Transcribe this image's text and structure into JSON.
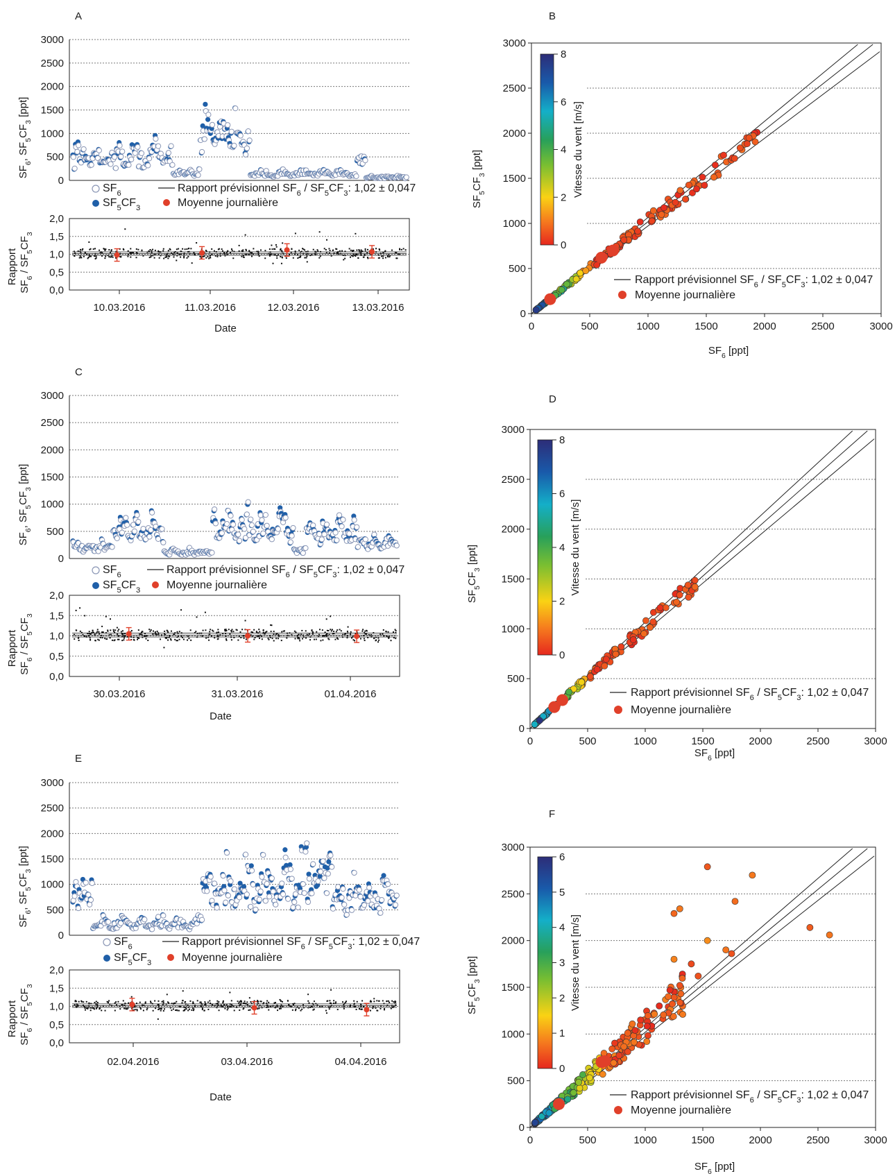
{
  "text": {
    "sf6": "SF",
    "sf5cf3": "SF",
    "predicted": "Rapport prévisionnel",
    "predicted_value": ": 1,02 ± 0,047",
    "daily_mean": "Moyenne journalière",
    "date": "Date",
    "x_scatter": "SF",
    "x_unit": " [ppt]",
    "y_scatter_unit": " [ppt]",
    "y_time_unit": " [ppt]",
    "ratio_title": "Rapport",
    "wind": "Vitesse du vent [m/s]"
  },
  "chart_data": [
    {
      "id": "A",
      "type": "scatter",
      "panel_label": "A",
      "x_ticks": [
        "10.03.2016",
        "11.03.2016",
        "12.03.2016",
        "13.03.2016"
      ],
      "xlabel": "Date",
      "ylabel": "SF6, SF5CF3 [ppt]",
      "ylim": [
        0,
        3000
      ],
      "yticks": [
        0,
        500,
        1000,
        1500,
        2000,
        2500,
        3000
      ],
      "ratio_ylim": [
        0,
        2
      ],
      "ratio_yticks": [
        "0,0",
        "0,5",
        "1,0",
        "1,5",
        "2,0"
      ],
      "ratio_ylabel": "Rapport SF6 / SF5CF3",
      "segments": [
        {
          "from": 0.0,
          "to": 0.3,
          "base": 400,
          "amp": 700
        },
        {
          "from": 0.3,
          "to": 0.38,
          "base": 150,
          "amp": 150
        },
        {
          "from": 0.38,
          "to": 0.53,
          "base": 900,
          "amp": 900
        },
        {
          "from": 0.53,
          "to": 0.85,
          "base": 120,
          "amp": 150
        },
        {
          "from": 0.85,
          "to": 0.88,
          "base": 500,
          "amp": 300
        },
        {
          "from": 0.88,
          "to": 1.0,
          "base": 60,
          "amp": 60
        }
      ],
      "daily_means": [
        {
          "x": 0.14,
          "y": 0.98
        },
        {
          "x": 0.39,
          "y": 1.04
        },
        {
          "x": 0.64,
          "y": 1.12
        },
        {
          "x": 0.89,
          "y": 1.07
        }
      ],
      "legend": [
        "SF6",
        "SF5CF3",
        "Rapport prévisionnel SF6 / SF5CF3: 1,02 ± 0,047",
        "Moyenne journalière"
      ]
    },
    {
      "id": "B",
      "type": "scatter",
      "panel_label": "B",
      "xlabel": "SF6 [ppt]",
      "ylabel": "SF5CF3 [ppt]",
      "xlim": [
        0,
        3000
      ],
      "ylim": [
        0,
        3000
      ],
      "xticks": [
        0,
        500,
        1000,
        1500,
        2000,
        2500,
        3000
      ],
      "yticks": [
        0,
        500,
        1000,
        1500,
        2000,
        2500,
        3000
      ],
      "colorbar": {
        "label": "Vitesse du vent [m/s]",
        "min": 0,
        "max": 8,
        "ticks": [
          0,
          2,
          4,
          6,
          8
        ]
      },
      "ratio_lines": [
        0.973,
        1.02,
        1.067
      ],
      "max_x": 1900,
      "points": 230,
      "daily_means": [
        {
          "x": 160,
          "y": 160
        },
        {
          "x": 600,
          "y": 620
        },
        {
          "x": 700,
          "y": 700
        }
      ],
      "legend": [
        "Rapport prévisionnel SF6 / SF5CF3: 1,02 ± 0,047",
        "Moyenne journalière"
      ]
    },
    {
      "id": "C",
      "type": "scatter",
      "panel_label": "C",
      "x_ticks": [
        "30.03.2016",
        "31.03.2016",
        "01.04.2016"
      ],
      "xlabel": "Date",
      "ylabel": "SF6, SF5CF3 [ppt]",
      "ylim": [
        0,
        3000
      ],
      "yticks": [
        0,
        500,
        1000,
        1500,
        2000,
        2500,
        3000
      ],
      "ratio_ylim": [
        0,
        2
      ],
      "ratio_yticks": [
        "0,0",
        "0,5",
        "1,0",
        "1,5",
        "2,0"
      ],
      "ratio_ylabel": "Rapport SF6 / SF5CF3",
      "segments": [
        {
          "from": 0.0,
          "to": 0.12,
          "base": 200,
          "amp": 200
        },
        {
          "from": 0.12,
          "to": 0.28,
          "base": 450,
          "amp": 650
        },
        {
          "from": 0.28,
          "to": 0.43,
          "base": 100,
          "amp": 120
        },
        {
          "from": 0.43,
          "to": 0.68,
          "base": 450,
          "amp": 800
        },
        {
          "from": 0.68,
          "to": 0.72,
          "base": 150,
          "amp": 100
        },
        {
          "from": 0.72,
          "to": 0.88,
          "base": 400,
          "amp": 550
        },
        {
          "from": 0.88,
          "to": 1.0,
          "base": 250,
          "amp": 250
        }
      ],
      "daily_means": [
        {
          "x": 0.18,
          "y": 1.05
        },
        {
          "x": 0.54,
          "y": 1.0
        },
        {
          "x": 0.87,
          "y": 0.99
        }
      ],
      "legend": [
        "SF6",
        "SF5CF3",
        "Rapport prévisionnel SF6 / SF5CF3: 1,02 ± 0,047",
        "Moyenne journalière"
      ]
    },
    {
      "id": "D",
      "type": "scatter",
      "panel_label": "D",
      "xlabel": "SF6 [ppt]",
      "ylabel": "SF5CF3 [ppt]",
      "xlim": [
        0,
        3000
      ],
      "ylim": [
        0,
        3000
      ],
      "xticks": [
        0,
        500,
        1000,
        1500,
        2000,
        2500,
        3000
      ],
      "yticks": [
        0,
        500,
        1000,
        1500,
        2000,
        2500,
        3000
      ],
      "colorbar": {
        "label": "Vitesse du vent [m/s]",
        "min": 0,
        "max": 8,
        "ticks": [
          0,
          2,
          4,
          6,
          8
        ]
      },
      "ratio_lines": [
        0.973,
        1.02,
        1.067
      ],
      "max_x": 1400,
      "points": 200,
      "daily_means": [
        {
          "x": 210,
          "y": 215
        },
        {
          "x": 280,
          "y": 285
        }
      ],
      "legend": [
        "Rapport prévisionnel SF6 / SF5CF3: 1,02 ± 0,047",
        "Moyenne journalière"
      ]
    },
    {
      "id": "E",
      "type": "scatter",
      "panel_label": "E",
      "x_ticks": [
        "02.04.2016",
        "03.04.2016",
        "04.04.2016"
      ],
      "xlabel": "Date",
      "ylabel": "SF6, SF5CF3 [ppt]",
      "ylim": [
        0,
        3000
      ],
      "yticks": [
        0,
        500,
        1000,
        1500,
        2000,
        2500,
        3000
      ],
      "ratio_ylim": [
        0,
        2
      ],
      "ratio_yticks": [
        "0,0",
        "0,5",
        "1,0",
        "1,5",
        "2,0"
      ],
      "ratio_ylabel": "Rapport SF6 / SF5CF3",
      "segments": [
        {
          "from": 0.0,
          "to": 0.06,
          "base": 700,
          "amp": 600
        },
        {
          "from": 0.06,
          "to": 0.4,
          "base": 180,
          "amp": 300
        },
        {
          "from": 0.4,
          "to": 0.74,
          "base": 800,
          "amp": 1300
        },
        {
          "from": 0.74,
          "to": 0.8,
          "base": 1200,
          "amp": 1500
        },
        {
          "from": 0.8,
          "to": 1.0,
          "base": 650,
          "amp": 800
        }
      ],
      "daily_means": [
        {
          "x": 0.19,
          "y": 1.05
        },
        {
          "x": 0.56,
          "y": 0.96
        },
        {
          "x": 0.9,
          "y": 0.91
        }
      ],
      "legend": [
        "SF6",
        "SF5CF3",
        "Rapport prévisionnel SF6 / SF5CF3: 1,02 ± 0,047",
        "Moyenne journalière"
      ]
    },
    {
      "id": "F",
      "type": "scatter",
      "panel_label": "F",
      "xlabel": "SF6 [ppt]",
      "ylabel": "SF5CF3 [ppt]",
      "xlim": [
        0,
        3000
      ],
      "ylim": [
        0,
        3000
      ],
      "xticks": [
        0,
        500,
        1000,
        1500,
        2000,
        2500,
        3000
      ],
      "yticks": [
        0,
        500,
        1000,
        1500,
        2000,
        2500,
        3000
      ],
      "colorbar": {
        "label": "Vitesse du vent [m/s]",
        "min": 0,
        "max": 6,
        "ticks": [
          0,
          1,
          2,
          3,
          4,
          5,
          6
        ]
      },
      "ratio_lines": [
        0.973,
        1.02,
        1.067
      ],
      "max_x": 1300,
      "points": 300,
      "outliers": [
        [
          1540,
          2790
        ],
        [
          1930,
          2700
        ],
        [
          2430,
          2140
        ],
        [
          2600,
          2060
        ],
        [
          1780,
          2420
        ],
        [
          1300,
          2340
        ],
        [
          1250,
          2290
        ],
        [
          1540,
          2000
        ],
        [
          1700,
          1900
        ],
        [
          1750,
          1860
        ],
        [
          1400,
          1750
        ],
        [
          1250,
          1800
        ],
        [
          1460,
          1620
        ],
        [
          1300,
          1520
        ],
        [
          1200,
          1400
        ]
      ],
      "daily_means": [
        {
          "x": 250,
          "y": 250
        },
        {
          "x": 620,
          "y": 700
        },
        {
          "x": 650,
          "y": 710
        }
      ],
      "legend": [
        "Rapport prévisionnel SF6 / SF5CF3: 1,02 ± 0,047",
        "Moyenne journalière"
      ]
    }
  ]
}
